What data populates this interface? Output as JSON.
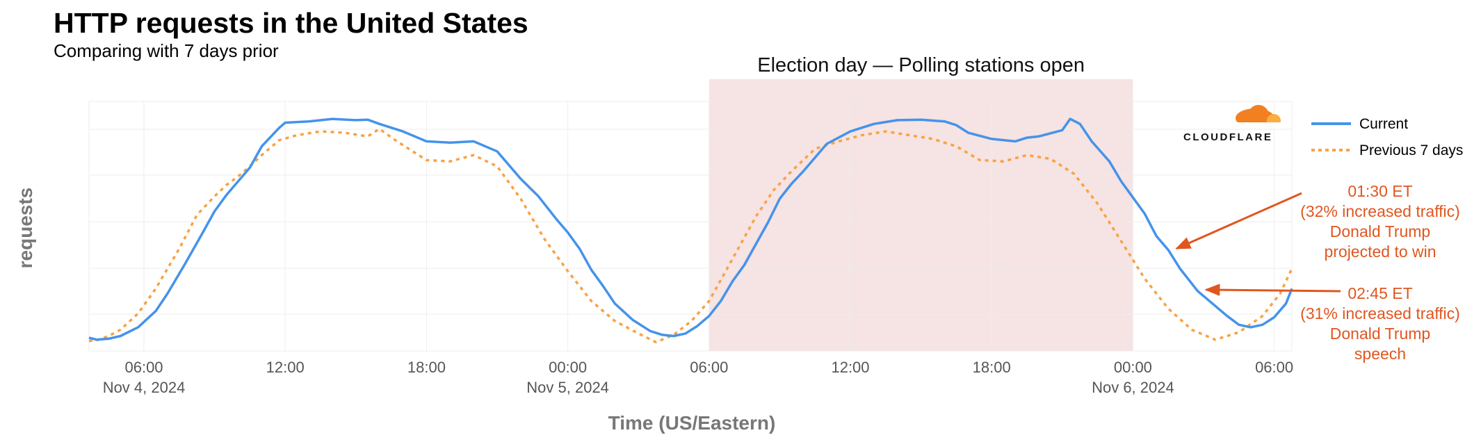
{
  "title": "HTTP requests in the United States",
  "subtitle": "Comparing with 7 days prior",
  "logo_text": "CLOUDFLARE",
  "colors": {
    "current": "#4593ea",
    "previous": "#f9a244",
    "band": "#f6e3e3",
    "annotation": "#e0561f",
    "grid": "#eeeeee"
  },
  "chart_data": {
    "type": "line",
    "xlabel": "Time (US/Eastern)",
    "ylabel": "requests",
    "x_range": [
      "2024-11-04 03:40",
      "2024-11-06 06:45"
    ],
    "grid": true,
    "legend_position": "right",
    "x_ticks": [
      {
        "t": "2024-11-04 06:00",
        "label": "06:00",
        "date": "Nov 4, 2024"
      },
      {
        "t": "2024-11-04 12:00",
        "label": "12:00",
        "date": ""
      },
      {
        "t": "2024-11-04 18:00",
        "label": "18:00",
        "date": ""
      },
      {
        "t": "2024-11-05 00:00",
        "label": "00:00",
        "date": "Nov 5, 2024"
      },
      {
        "t": "2024-11-05 06:00",
        "label": "06:00",
        "date": ""
      },
      {
        "t": "2024-11-05 12:00",
        "label": "12:00",
        "date": ""
      },
      {
        "t": "2024-11-05 18:00",
        "label": "18:00",
        "date": ""
      },
      {
        "t": "2024-11-06 00:00",
        "label": "00:00",
        "date": "Nov 6, 2024"
      },
      {
        "t": "2024-11-06 06:00",
        "label": "06:00",
        "date": ""
      }
    ],
    "highlight_band": {
      "label": "Election day — Polling stations open",
      "start": "2024-11-05 06:00",
      "end": "2024-11-06 00:00"
    },
    "y_note": "relative scale, no tick labels; 0 = chart bottom, 100 = chart top",
    "series": [
      {
        "name": "Current",
        "style": "solid",
        "points": [
          [
            "2024-11-04 03:40",
            5.3
          ],
          [
            "2024-11-04 04:00",
            4.5
          ],
          [
            "2024-11-04 04:30",
            4.9
          ],
          [
            "2024-11-04 05:00",
            6.0
          ],
          [
            "2024-11-04 05:45",
            9.5
          ],
          [
            "2024-11-04 06:30",
            16.0
          ],
          [
            "2024-11-04 07:00",
            23.0
          ],
          [
            "2024-11-04 07:45",
            35.0
          ],
          [
            "2024-11-04 08:30",
            47.5
          ],
          [
            "2024-11-04 09:00",
            56.0
          ],
          [
            "2024-11-04 09:30",
            62.5
          ],
          [
            "2024-11-04 10:00",
            68.0
          ],
          [
            "2024-11-04 10:30",
            73.5
          ],
          [
            "2024-11-04 11:00",
            82.0
          ],
          [
            "2024-11-04 11:45",
            89.5
          ],
          [
            "2024-11-04 12:00",
            91.5
          ],
          [
            "2024-11-04 13:00",
            92.0
          ],
          [
            "2024-11-04 14:00",
            93.0
          ],
          [
            "2024-11-04 15:00",
            92.5
          ],
          [
            "2024-11-04 15:30",
            92.7
          ],
          [
            "2024-11-04 16:00",
            91.0
          ],
          [
            "2024-11-04 17:00",
            88.0
          ],
          [
            "2024-11-04 18:00",
            84.0
          ],
          [
            "2024-11-04 19:00",
            83.5
          ],
          [
            "2024-11-04 20:00",
            84.0
          ],
          [
            "2024-11-04 21:00",
            80.0
          ],
          [
            "2024-11-04 22:00",
            69.0
          ],
          [
            "2024-11-04 22:45",
            62.0
          ],
          [
            "2024-11-04 23:30",
            53.0
          ],
          [
            "2024-11-05 00:00",
            47.5
          ],
          [
            "2024-11-05 00:30",
            41.0
          ],
          [
            "2024-11-05 01:00",
            32.5
          ],
          [
            "2024-11-05 01:30",
            26.0
          ],
          [
            "2024-11-05 02:00",
            19.0
          ],
          [
            "2024-11-05 02:45",
            12.5
          ],
          [
            "2024-11-05 03:30",
            8.0
          ],
          [
            "2024-11-05 04:00",
            6.5
          ],
          [
            "2024-11-05 04:30",
            6.0
          ],
          [
            "2024-11-05 05:00",
            7.0
          ],
          [
            "2024-11-05 05:30",
            10.0
          ],
          [
            "2024-11-05 06:00",
            14.0
          ],
          [
            "2024-11-05 06:30",
            20.0
          ],
          [
            "2024-11-05 07:00",
            28.0
          ],
          [
            "2024-11-05 07:30",
            34.5
          ],
          [
            "2024-11-05 08:00",
            43.0
          ],
          [
            "2024-11-05 08:30",
            51.5
          ],
          [
            "2024-11-05 09:00",
            61.0
          ],
          [
            "2024-11-05 09:30",
            67.0
          ],
          [
            "2024-11-05 10:00",
            72.0
          ],
          [
            "2024-11-05 11:00",
            83.0
          ],
          [
            "2024-11-05 12:00",
            88.0
          ],
          [
            "2024-11-05 13:00",
            91.0
          ],
          [
            "2024-11-05 14:00",
            92.5
          ],
          [
            "2024-11-05 15:00",
            92.7
          ],
          [
            "2024-11-05 16:00",
            92.0
          ],
          [
            "2024-11-05 16:30",
            90.5
          ],
          [
            "2024-11-05 17:00",
            87.5
          ],
          [
            "2024-11-05 18:00",
            85.0
          ],
          [
            "2024-11-05 19:00",
            84.0
          ],
          [
            "2024-11-05 19:30",
            85.5
          ],
          [
            "2024-11-05 20:00",
            86.0
          ],
          [
            "2024-11-05 21:00",
            88.5
          ],
          [
            "2024-11-05 21:20",
            93.0
          ],
          [
            "2024-11-05 21:45",
            91.0
          ],
          [
            "2024-11-05 22:15",
            84.0
          ],
          [
            "2024-11-05 23:00",
            76.0
          ],
          [
            "2024-11-05 23:30",
            68.0
          ],
          [
            "2024-11-06 00:00",
            61.5
          ],
          [
            "2024-11-06 00:30",
            55.0
          ],
          [
            "2024-11-06 01:00",
            46.0
          ],
          [
            "2024-11-06 01:30",
            40.5
          ],
          [
            "2024-11-06 02:00",
            33.0
          ],
          [
            "2024-11-06 02:45",
            24.0
          ],
          [
            "2024-11-06 03:15",
            20.0
          ],
          [
            "2024-11-06 04:00",
            14.0
          ],
          [
            "2024-11-06 04:30",
            10.5
          ],
          [
            "2024-11-06 05:00",
            9.5
          ],
          [
            "2024-11-06 05:30",
            10.5
          ],
          [
            "2024-11-06 06:00",
            13.5
          ],
          [
            "2024-11-06 06:30",
            19.0
          ],
          [
            "2024-11-06 06:45",
            25.0
          ]
        ]
      },
      {
        "name": "Previous 7 days",
        "style": "dashed",
        "points": [
          [
            "2024-11-04 03:40",
            4.0
          ],
          [
            "2024-11-04 04:00",
            4.3
          ],
          [
            "2024-11-04 04:30",
            6.0
          ],
          [
            "2024-11-04 05:00",
            8.5
          ],
          [
            "2024-11-04 05:45",
            15.0
          ],
          [
            "2024-11-04 06:30",
            25.0
          ],
          [
            "2024-11-04 07:30",
            41.0
          ],
          [
            "2024-11-04 08:15",
            54.5
          ],
          [
            "2024-11-04 09:00",
            62.0
          ],
          [
            "2024-11-04 09:30",
            66.5
          ],
          [
            "2024-11-04 10:00",
            70.0
          ],
          [
            "2024-11-04 10:30",
            74.0
          ],
          [
            "2024-11-04 11:00",
            78.5
          ],
          [
            "2024-11-04 11:45",
            84.5
          ],
          [
            "2024-11-04 12:30",
            86.5
          ],
          [
            "2024-11-04 13:30",
            88.0
          ],
          [
            "2024-11-04 14:30",
            87.5
          ],
          [
            "2024-11-04 15:30",
            86.0
          ],
          [
            "2024-11-04 16:00",
            89.0
          ],
          [
            "2024-11-04 16:45",
            84.0
          ],
          [
            "2024-11-04 18:00",
            76.5
          ],
          [
            "2024-11-04 19:00",
            76.0
          ],
          [
            "2024-11-04 20:00",
            78.5
          ],
          [
            "2024-11-04 21:00",
            74.0
          ],
          [
            "2024-11-04 22:00",
            61.0
          ],
          [
            "2024-11-04 23:00",
            45.0
          ],
          [
            "2024-11-05 00:00",
            32.0
          ],
          [
            "2024-11-05 01:00",
            20.0
          ],
          [
            "2024-11-05 02:00",
            12.0
          ],
          [
            "2024-11-05 03:00",
            7.0
          ],
          [
            "2024-11-05 03:45",
            3.5
          ],
          [
            "2024-11-05 04:30",
            6.5
          ],
          [
            "2024-11-05 05:15",
            12.0
          ],
          [
            "2024-11-05 06:00",
            20.0
          ],
          [
            "2024-11-05 07:00",
            37.0
          ],
          [
            "2024-11-05 08:00",
            54.0
          ],
          [
            "2024-11-05 08:45",
            64.5
          ],
          [
            "2024-11-05 09:30",
            72.0
          ],
          [
            "2024-11-05 10:30",
            81.0
          ],
          [
            "2024-11-05 11:30",
            84.0
          ],
          [
            "2024-11-05 12:30",
            86.5
          ],
          [
            "2024-11-05 13:30",
            88.0
          ],
          [
            "2024-11-05 14:30",
            86.5
          ],
          [
            "2024-11-05 15:30",
            85.0
          ],
          [
            "2024-11-05 16:30",
            82.0
          ],
          [
            "2024-11-05 17:30",
            76.5
          ],
          [
            "2024-11-05 18:30",
            76.0
          ],
          [
            "2024-11-05 19:30",
            78.5
          ],
          [
            "2024-11-05 20:30",
            77.0
          ],
          [
            "2024-11-05 21:30",
            71.0
          ],
          [
            "2024-11-05 22:30",
            59.0
          ],
          [
            "2024-11-05 23:30",
            44.0
          ],
          [
            "2024-11-06 00:30",
            29.0
          ],
          [
            "2024-11-06 01:30",
            17.0
          ],
          [
            "2024-11-06 02:30",
            8.5
          ],
          [
            "2024-11-06 03:30",
            4.5
          ],
          [
            "2024-11-06 04:30",
            7.5
          ],
          [
            "2024-11-06 05:30",
            14.0
          ],
          [
            "2024-11-06 06:15",
            23.0
          ],
          [
            "2024-11-06 06:45",
            33.0
          ]
        ]
      }
    ],
    "annotations": [
      {
        "at": "2024-11-06 01:30",
        "y": 40.5,
        "lines": [
          "01:30 ET",
          "(32% increased traffic)",
          "Donald Trump",
          "projected to win"
        ]
      },
      {
        "at": "2024-11-06 02:45",
        "y": 24.0,
        "lines": [
          "02:45 ET",
          "(31% increased traffic)",
          "Donald Trump",
          "speech"
        ]
      }
    ]
  }
}
